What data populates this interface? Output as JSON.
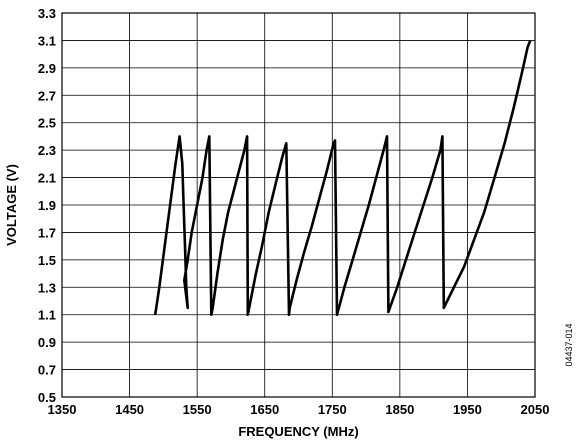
{
  "chart_data": {
    "type": "line",
    "xlabel": "FREQUENCY (MHz)",
    "ylabel": "VOLTAGE (V)",
    "xlim": [
      1350,
      2050
    ],
    "ylim": [
      0.5,
      3.3
    ],
    "x_ticks": [
      "1350",
      "1450",
      "1550",
      "1650",
      "1750",
      "1850",
      "1950",
      "2050"
    ],
    "y_ticks": [
      "0.5",
      "0.7",
      "0.9",
      "1.1",
      "1.3",
      "1.5",
      "1.7",
      "1.9",
      "2.1",
      "2.3",
      "2.5",
      "2.7",
      "2.9",
      "3.1",
      "3.3"
    ],
    "grid": true,
    "figure_id": "04437-014",
    "series": [
      {
        "x": [
          1488,
          1494,
          1502,
          1510,
          1518,
          1524,
          1528,
          1530,
          1532,
          1534,
          1536,
          1531,
          1536,
          1542,
          1550,
          1558,
          1564,
          1568,
          1571,
          1573,
          1580,
          1588,
          1596,
          1604,
          1612,
          1620,
          1624,
          1625,
          1629,
          1637,
          1646,
          1656,
          1666,
          1676,
          1682,
          1686,
          1687,
          1697,
          1708,
          1720,
          1731,
          1742,
          1752,
          1754,
          1757,
          1768,
          1780,
          1792,
          1804,
          1815,
          1826,
          1831,
          1833,
          1846,
          1859,
          1872,
          1885,
          1898,
          1910,
          1913,
          1915,
          1930,
          1945,
          1960,
          1975,
          1990,
          2005,
          2018,
          2030,
          2039,
          2043
        ],
        "y": [
          1.1,
          1.3,
          1.6,
          1.9,
          2.2,
          2.4,
          2.2,
          1.9,
          1.6,
          1.3,
          1.15,
          1.35,
          1.5,
          1.7,
          1.9,
          2.1,
          2.3,
          2.4,
          1.1,
          1.15,
          1.4,
          1.65,
          1.85,
          2.0,
          2.15,
          2.3,
          2.4,
          1.1,
          1.2,
          1.4,
          1.6,
          1.85,
          2.05,
          2.25,
          2.35,
          1.1,
          1.15,
          1.35,
          1.55,
          1.75,
          1.95,
          2.15,
          2.35,
          2.37,
          1.1,
          1.3,
          1.5,
          1.7,
          1.9,
          2.1,
          2.3,
          2.4,
          1.12,
          1.3,
          1.5,
          1.7,
          1.9,
          2.1,
          2.3,
          2.4,
          1.15,
          1.3,
          1.45,
          1.65,
          1.85,
          2.1,
          2.35,
          2.6,
          2.85,
          3.05,
          3.1
        ]
      }
    ]
  }
}
